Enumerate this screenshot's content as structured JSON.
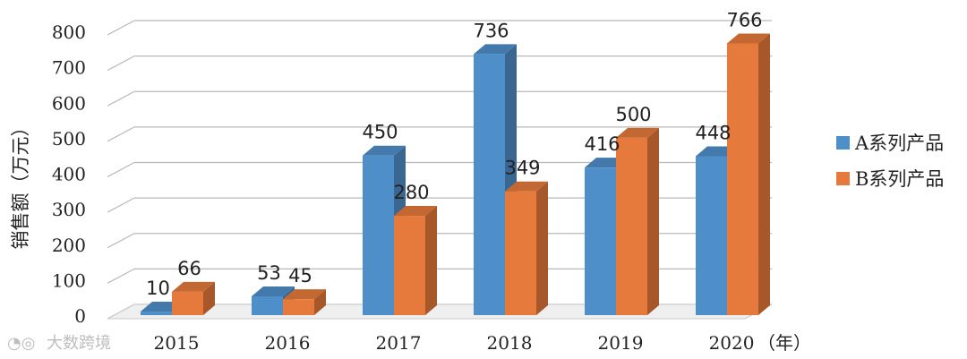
{
  "chart_data": {
    "type": "bar",
    "categories": [
      "2015",
      "2016",
      "2017",
      "2018",
      "2019",
      "2020"
    ],
    "series": [
      {
        "name": "A系列产品",
        "values": [
          10,
          53,
          450,
          736,
          416,
          448
        ],
        "color": "#4f8fc9"
      },
      {
        "name": "B系列产品",
        "values": [
          66,
          45,
          280,
          349,
          500,
          766
        ],
        "color": "#e67a3c"
      }
    ],
    "data_labels": {
      "A": [
        "10",
        "53",
        "450",
        "736",
        "416",
        "448"
      ],
      "B": [
        "66",
        "45",
        "280",
        "349",
        "500",
        "766"
      ]
    },
    "yticks": [
      "0",
      "100",
      "200",
      "300",
      "400",
      "500",
      "600",
      "700",
      "800"
    ],
    "ylim": [
      0,
      800
    ],
    "ylabel": "销售额（万元）",
    "xlabel": "（年）",
    "legend_position": "right",
    "grid": true,
    "style": "3d"
  },
  "watermark": "大数跨境"
}
